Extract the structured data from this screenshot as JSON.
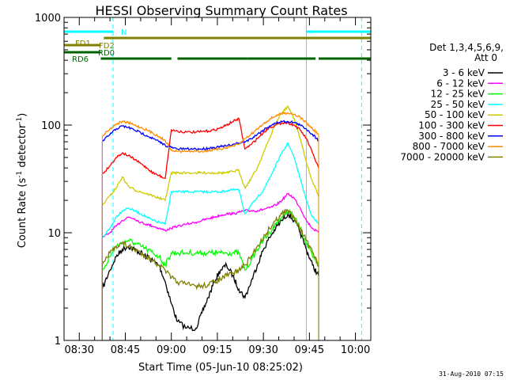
{
  "chart_data": {
    "type": "line",
    "title": "HESSI Observing Summary Count Rates",
    "xlabel": "Start Time (05-Jun-10 08:25:02)",
    "ylabel_parts": [
      "Count Rate (s",
      "-1",
      " detector",
      "-1",
      ")"
    ],
    "ylabel": "Count Rate (s-1 detector-1)",
    "yscale": "log",
    "ylim": [
      1,
      1000
    ],
    "xlim": [
      "08:25:02",
      "10:05:00"
    ],
    "y_ticks": [
      "1",
      "10",
      "100",
      "1000"
    ],
    "x_ticks": [
      "08:30",
      "08:45",
      "09:00",
      "09:15",
      "09:30",
      "09:45",
      "10:00"
    ],
    "legend_title": [
      "Det 1,3,4,5,6,9,",
      "Att 0"
    ],
    "legend_position": "right",
    "series": [
      {
        "name": "3 - 6 keV",
        "color": "#000000",
        "x": [
          "08:37:30",
          "08:40",
          "08:42",
          "08:44",
          "08:46",
          "08:48",
          "08:50",
          "08:52",
          "08:54",
          "08:56",
          "08:58",
          "09:00",
          "09:02",
          "09:05",
          "09:08",
          "09:10",
          "09:12",
          "09:14",
          "09:16",
          "09:18",
          "09:20",
          "09:22",
          "09:24",
          "09:26",
          "09:28",
          "09:30",
          "09:32",
          "09:34",
          "09:36",
          "09:38",
          "09:40",
          "09:42",
          "09:44",
          "09:46",
          "09:48"
        ],
        "values": [
          3.0,
          4.5,
          6.0,
          7.0,
          7.5,
          7.0,
          6.5,
          6.0,
          5.5,
          5.0,
          3.5,
          2.2,
          1.5,
          1.3,
          1.3,
          1.8,
          2.5,
          3.5,
          4.5,
          5.0,
          4.0,
          3.0,
          2.5,
          3.5,
          5.0,
          7.0,
          9.0,
          11.0,
          13.0,
          15.0,
          13.0,
          10.0,
          7.0,
          5.0,
          4.0
        ]
      },
      {
        "name": "6 - 12 keV",
        "color": "#ff00ff",
        "x": [
          "08:37:30",
          "08:40",
          "08:42",
          "08:44",
          "08:46",
          "08:48",
          "08:50",
          "08:52",
          "08:54",
          "08:56",
          "08:58",
          "09:00",
          "09:02",
          "09:05",
          "09:08",
          "09:10",
          "09:12",
          "09:14",
          "09:16",
          "09:18",
          "09:20",
          "09:22",
          "09:24",
          "09:26",
          "09:28",
          "09:30",
          "09:32",
          "09:34",
          "09:36",
          "09:38",
          "09:40",
          "09:42",
          "09:44",
          "09:46",
          "09:48"
        ],
        "values": [
          9.0,
          10.0,
          11.5,
          13.0,
          14.0,
          13.5,
          12.5,
          12.0,
          11.5,
          11.0,
          10.5,
          11.0,
          11.5,
          12.0,
          12.5,
          13.0,
          13.5,
          14.0,
          14.5,
          15.0,
          15.0,
          15.5,
          16.0,
          16.0,
          16.0,
          16.5,
          17.0,
          18.0,
          20.0,
          23.0,
          21.0,
          17.0,
          13.0,
          11.0,
          10.0
        ]
      },
      {
        "name": "12 - 25 keV",
        "color": "#00ff00",
        "x": [
          "08:37:30",
          "08:40",
          "08:42",
          "08:44",
          "08:46",
          "08:48",
          "08:50",
          "08:52",
          "08:54",
          "08:56",
          "08:58",
          "09:00",
          "09:02",
          "09:05",
          "09:08",
          "09:10",
          "09:12",
          "09:14",
          "09:16",
          "09:18",
          "09:20",
          "09:22",
          "09:24",
          "09:26",
          "09:28",
          "09:30",
          "09:32",
          "09:34",
          "09:36",
          "09:38",
          "09:40",
          "09:42",
          "09:44",
          "09:46",
          "09:48"
        ],
        "values": [
          4.5,
          6.0,
          7.5,
          8.0,
          8.5,
          8.0,
          7.5,
          7.0,
          6.5,
          6.0,
          5.0,
          6.5,
          6.5,
          6.5,
          6.5,
          6.5,
          6.5,
          6.5,
          6.5,
          6.5,
          6.5,
          6.5,
          4.5,
          5.5,
          7.0,
          8.5,
          10.0,
          12.0,
          14.0,
          16.0,
          14.0,
          11.0,
          8.0,
          6.0,
          5.0
        ]
      },
      {
        "name": "25 - 50 keV",
        "color": "#00ffff",
        "x": [
          "08:37:30",
          "08:40",
          "08:42",
          "08:44",
          "08:46",
          "08:48",
          "08:50",
          "08:52",
          "08:54",
          "08:56",
          "08:58",
          "09:00",
          "09:02",
          "09:05",
          "09:08",
          "09:10",
          "09:12",
          "09:14",
          "09:16",
          "09:18",
          "09:20",
          "09:22",
          "09:24",
          "09:26",
          "09:28",
          "09:30",
          "09:32",
          "09:34",
          "09:36",
          "09:38",
          "09:40",
          "09:42",
          "09:44",
          "09:46",
          "09:48"
        ],
        "values": [
          9.0,
          11.0,
          14.0,
          16.0,
          17.0,
          16.0,
          15.0,
          14.0,
          13.0,
          12.5,
          12.0,
          24.0,
          24.0,
          24.0,
          24.0,
          24.0,
          24.0,
          24.0,
          24.0,
          24.5,
          25.0,
          25.0,
          15.0,
          18.0,
          21.0,
          25.0,
          32.0,
          42.0,
          55.0,
          68.0,
          50.0,
          32.0,
          20.0,
          14.0,
          12.0
        ]
      },
      {
        "name": "50 - 100 keV",
        "color": "#cccc00",
        "x": [
          "08:37:30",
          "08:40",
          "08:42",
          "08:44",
          "08:46",
          "08:48",
          "08:50",
          "08:52",
          "08:54",
          "08:56",
          "08:58",
          "09:00",
          "09:02",
          "09:05",
          "09:08",
          "09:10",
          "09:12",
          "09:14",
          "09:16",
          "09:18",
          "09:20",
          "09:22",
          "09:24",
          "09:26",
          "09:28",
          "09:30",
          "09:32",
          "09:34",
          "09:36",
          "09:38",
          "09:40",
          "09:42",
          "09:44",
          "09:46",
          "09:48"
        ],
        "values": [
          18.0,
          22.0,
          26.0,
          33.0,
          27.0,
          25.0,
          24.0,
          23.0,
          22.0,
          21.0,
          20.0,
          36.0,
          36.0,
          36.0,
          36.0,
          36.0,
          36.0,
          36.0,
          36.0,
          36.0,
          37.0,
          38.0,
          26.0,
          32.0,
          40.0,
          55.0,
          75.0,
          105.0,
          130.0,
          150.0,
          115.0,
          75.0,
          45.0,
          30.0,
          22.0
        ]
      },
      {
        "name": "100 - 300 keV",
        "color": "#ff0000",
        "x": [
          "08:37:30",
          "08:40",
          "08:42",
          "08:44",
          "08:46",
          "08:48",
          "08:50",
          "08:52",
          "08:54",
          "08:56",
          "08:58",
          "09:00",
          "09:02",
          "09:05",
          "09:08",
          "09:10",
          "09:12",
          "09:14",
          "09:16",
          "09:18",
          "09:20",
          "09:22",
          "09:24",
          "09:26",
          "09:28",
          "09:30",
          "09:32",
          "09:34",
          "09:36",
          "09:38",
          "09:40",
          "09:42",
          "09:44",
          "09:46",
          "09:48"
        ],
        "values": [
          35.0,
          42.0,
          50.0,
          55.0,
          52.0,
          48.0,
          44.0,
          40.0,
          36.0,
          34.0,
          32.0,
          90.0,
          88.0,
          86.0,
          86.0,
          87.0,
          88.0,
          90.0,
          94.0,
          100.0,
          108.0,
          115.0,
          60.0,
          66.0,
          75.0,
          85.0,
          95.0,
          100.0,
          105.0,
          105.0,
          100.0,
          90.0,
          75.0,
          55.0,
          40.0
        ]
      },
      {
        "name": "300 - 800 keV",
        "color": "#0000ff",
        "x": [
          "08:37:30",
          "08:40",
          "08:42",
          "08:44",
          "08:46",
          "08:48",
          "08:50",
          "08:52",
          "08:54",
          "08:56",
          "08:58",
          "09:00",
          "09:02",
          "09:05",
          "09:08",
          "09:10",
          "09:12",
          "09:14",
          "09:16",
          "09:18",
          "09:20",
          "09:22",
          "09:24",
          "09:26",
          "09:28",
          "09:30",
          "09:32",
          "09:34",
          "09:36",
          "09:38",
          "09:40",
          "09:42",
          "09:44",
          "09:46",
          "09:48"
        ],
        "values": [
          70.0,
          82.0,
          92.0,
          98.0,
          95.0,
          90.0,
          85.0,
          80.0,
          75.0,
          70.0,
          65.0,
          62.0,
          60.0,
          60.0,
          60.0,
          60.0,
          61.0,
          62.0,
          63.0,
          64.0,
          66.0,
          68.0,
          70.0,
          75.0,
          82.0,
          90.0,
          98.0,
          104.0,
          108.0,
          108.0,
          106.0,
          100.0,
          92.0,
          82.0,
          72.0
        ]
      },
      {
        "name": "800 - 7000 keV",
        "color": "#ff8c00",
        "x": [
          "08:37:30",
          "08:40",
          "08:42",
          "08:44",
          "08:46",
          "08:48",
          "08:50",
          "08:52",
          "08:54",
          "08:56",
          "08:58",
          "09:00",
          "09:02",
          "09:05",
          "09:08",
          "09:10",
          "09:12",
          "09:14",
          "09:16",
          "09:18",
          "09:20",
          "09:22",
          "09:24",
          "09:26",
          "09:28",
          "09:30",
          "09:32",
          "09:34",
          "09:36",
          "09:38",
          "09:40",
          "09:42",
          "09:44",
          "09:46",
          "09:48"
        ],
        "values": [
          80.0,
          92.0,
          102.0,
          108.0,
          105.0,
          100.0,
          95.0,
          90.0,
          84.0,
          78.0,
          72.0,
          58.0,
          57.0,
          57.0,
          57.0,
          57.0,
          58.0,
          59.0,
          60.0,
          62.0,
          64.0,
          66.0,
          75.0,
          82.0,
          92.0,
          103.0,
          113.0,
          122.0,
          128.0,
          130.0,
          126.0,
          118.0,
          105.0,
          92.0,
          82.0
        ]
      },
      {
        "name": "7000 - 20000 keV",
        "color": "#808000",
        "x": [
          "08:37:30",
          "08:40",
          "08:42",
          "08:44",
          "08:46",
          "08:48",
          "08:50",
          "08:52",
          "08:54",
          "08:56",
          "08:58",
          "09:00",
          "09:02",
          "09:05",
          "09:08",
          "09:10",
          "09:12",
          "09:14",
          "09:16",
          "09:18",
          "09:20",
          "09:22",
          "09:24",
          "09:26",
          "09:28",
          "09:30",
          "09:32",
          "09:34",
          "09:36",
          "09:38",
          "09:40",
          "09:42",
          "09:44",
          "09:46",
          "09:48"
        ],
        "values": [
          5.0,
          6.5,
          7.5,
          8.0,
          7.5,
          7.0,
          6.5,
          6.0,
          5.5,
          5.0,
          4.5,
          3.8,
          3.5,
          3.3,
          3.2,
          3.2,
          3.3,
          3.5,
          3.7,
          4.0,
          4.2,
          4.5,
          5.0,
          6.0,
          7.5,
          9.0,
          11.0,
          13.0,
          15.0,
          16.0,
          14.0,
          11.0,
          8.5,
          6.5,
          5.0
        ]
      }
    ],
    "flags": [
      {
        "label": "N",
        "color": "#00ffff",
        "segments": [
          [
            "08:25:02",
            "08:41:00"
          ],
          [
            "09:44:00",
            "10:05:00"
          ]
        ]
      },
      {
        "label": "FD1",
        "color": "#808000",
        "segments": [
          [
            "08:38:00",
            "10:05:00"
          ]
        ]
      },
      {
        "label": "FD2",
        "color": "#808000",
        "segments": [
          [
            "08:25:02",
            "08:37:00"
          ]
        ]
      },
      {
        "label": "RD0",
        "color": "#006400",
        "segments": [
          [
            "08:25:02",
            "08:37:00"
          ]
        ]
      },
      {
        "label": "RD6",
        "color": "#006400",
        "segments": [
          [
            "08:37:00",
            "09:00:00"
          ],
          [
            "09:02:00",
            "09:25:00"
          ],
          [
            "09:25:00",
            "09:47:00"
          ],
          [
            "09:48:00",
            "10:05:00"
          ]
        ]
      }
    ],
    "vertical_lines": [
      {
        "x": "08:25:02",
        "color": "#00ffff",
        "style": "solid"
      },
      {
        "x": "08:41:00",
        "color": "#00ffff",
        "style": "dashed"
      },
      {
        "x": "09:44:00",
        "color": "#00ffff",
        "style": "solid"
      },
      {
        "x": "10:02:00",
        "color": "#00ffff",
        "style": "dashed"
      }
    ],
    "grid": false
  },
  "timestamp": "31-Aug-2010 07:15"
}
